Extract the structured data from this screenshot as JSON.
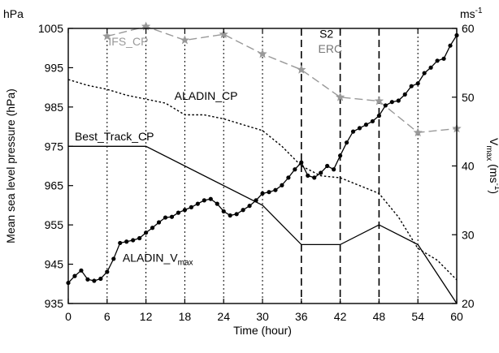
{
  "chart_data": {
    "type": "line",
    "xlabel": "Time (hour)",
    "ylabel_left": "Mean sea level pressure (hPa)",
    "ylabel_right_parts": {
      "v": "V",
      "sub": "max",
      "unit_open": " (ms",
      "unit_sup": "-1",
      "unit_close": ")"
    },
    "left_unit": "hPa",
    "right_unit_parts": {
      "base": "ms",
      "sup": "-1"
    },
    "xlim": [
      0,
      60
    ],
    "ylim_left": [
      935,
      1005
    ],
    "ylim_right": [
      20,
      60
    ],
    "x_ticks": [
      0,
      6,
      12,
      18,
      24,
      30,
      36,
      42,
      48,
      54,
      60
    ],
    "y_ticks_left": [
      935,
      945,
      955,
      965,
      975,
      985,
      995,
      1005
    ],
    "y_ticks_right": [
      20,
      30,
      40,
      50,
      60
    ],
    "vlines_dotted": [
      6,
      12,
      18,
      24,
      30,
      54
    ],
    "vlines_dashed": [
      36,
      42,
      48
    ],
    "annotations": [
      {
        "text": "S2",
        "x": 38.8,
        "y": 1002.6,
        "color": "#000000"
      },
      {
        "text": "ERC",
        "x": 38.6,
        "y": 998.8,
        "color": "#777777"
      }
    ],
    "series": [
      {
        "name": "Best_Track_CP",
        "axis": "left",
        "style": "solid",
        "color": "#000000",
        "label": {
          "text": "Best_Track_CP",
          "x": 1.0,
          "y": 976.5
        },
        "x": [
          0,
          12,
          30,
          36,
          42,
          48,
          54,
          60
        ],
        "y": [
          975,
          975,
          960,
          950,
          950,
          955,
          950,
          935
        ]
      },
      {
        "name": "ALADIN_CP",
        "axis": "left",
        "style": "dotted",
        "color": "#000000",
        "label": {
          "text": "ALADIN_CP",
          "x": 16.4,
          "y": 986.8
        },
        "x": [
          0,
          3,
          6,
          9,
          12,
          15,
          18,
          21,
          24,
          27,
          30,
          33,
          36,
          39,
          42,
          45,
          48,
          51,
          54,
          57,
          60
        ],
        "y": [
          992,
          990.5,
          989.5,
          988,
          987,
          986,
          983,
          983,
          982,
          980.5,
          979,
          975,
          970,
          967.5,
          967,
          965,
          963,
          957,
          949,
          946,
          941
        ]
      },
      {
        "name": "IFS_CP",
        "axis": "left",
        "style": "dashed",
        "color": "#999999",
        "marker": "star",
        "label": {
          "text": "IFS_CP",
          "x": 6.2,
          "y": 1000.7
        },
        "x": [
          6,
          12,
          18,
          24,
          30,
          36,
          42,
          48,
          54,
          60
        ],
        "y": [
          1003,
          1005.5,
          1002,
          1003.5,
          998.5,
          994.5,
          987.5,
          986.5,
          978.5,
          979.5
        ]
      },
      {
        "name": "ALADIN_Vmax",
        "axis": "right",
        "style": "solid",
        "color": "#000000",
        "marker": "dot",
        "label": {
          "text": "ALADIN_V",
          "sub": "max",
          "x": 8.4,
          "y": 26.1
        },
        "x": [
          0,
          1,
          2,
          3,
          4,
          5,
          6,
          7,
          8,
          9,
          10,
          11,
          12,
          13,
          14,
          15,
          16,
          17,
          18,
          19,
          20,
          21,
          22,
          23,
          24,
          25,
          26,
          27,
          28,
          29,
          30,
          31,
          32,
          33,
          34,
          35,
          36,
          37,
          38,
          39,
          40,
          41,
          42,
          43,
          44,
          45,
          46,
          47,
          48,
          49,
          50,
          51,
          52,
          53,
          54,
          55,
          56,
          57,
          58,
          59,
          60
        ],
        "y": [
          23,
          24,
          24.8,
          23.5,
          23.3,
          23.6,
          24.6,
          26.5,
          28.8,
          29,
          29.2,
          29.5,
          30.3,
          31,
          31.8,
          32.5,
          32.6,
          33.2,
          33.6,
          34,
          34.5,
          35,
          35.2,
          34.5,
          33.4,
          32.8,
          33,
          33.6,
          34.2,
          35,
          36,
          36.2,
          36.5,
          37.2,
          38.3,
          39.5,
          40.5,
          38.6,
          38.3,
          39,
          40,
          39.5,
          41.5,
          43.4,
          45,
          45.5,
          46,
          46.5,
          47.3,
          48.8,
          49.3,
          49.5,
          50.4,
          51.6,
          52,
          53.5,
          54.3,
          55.3,
          55.6,
          57.5,
          59
        ]
      }
    ]
  }
}
